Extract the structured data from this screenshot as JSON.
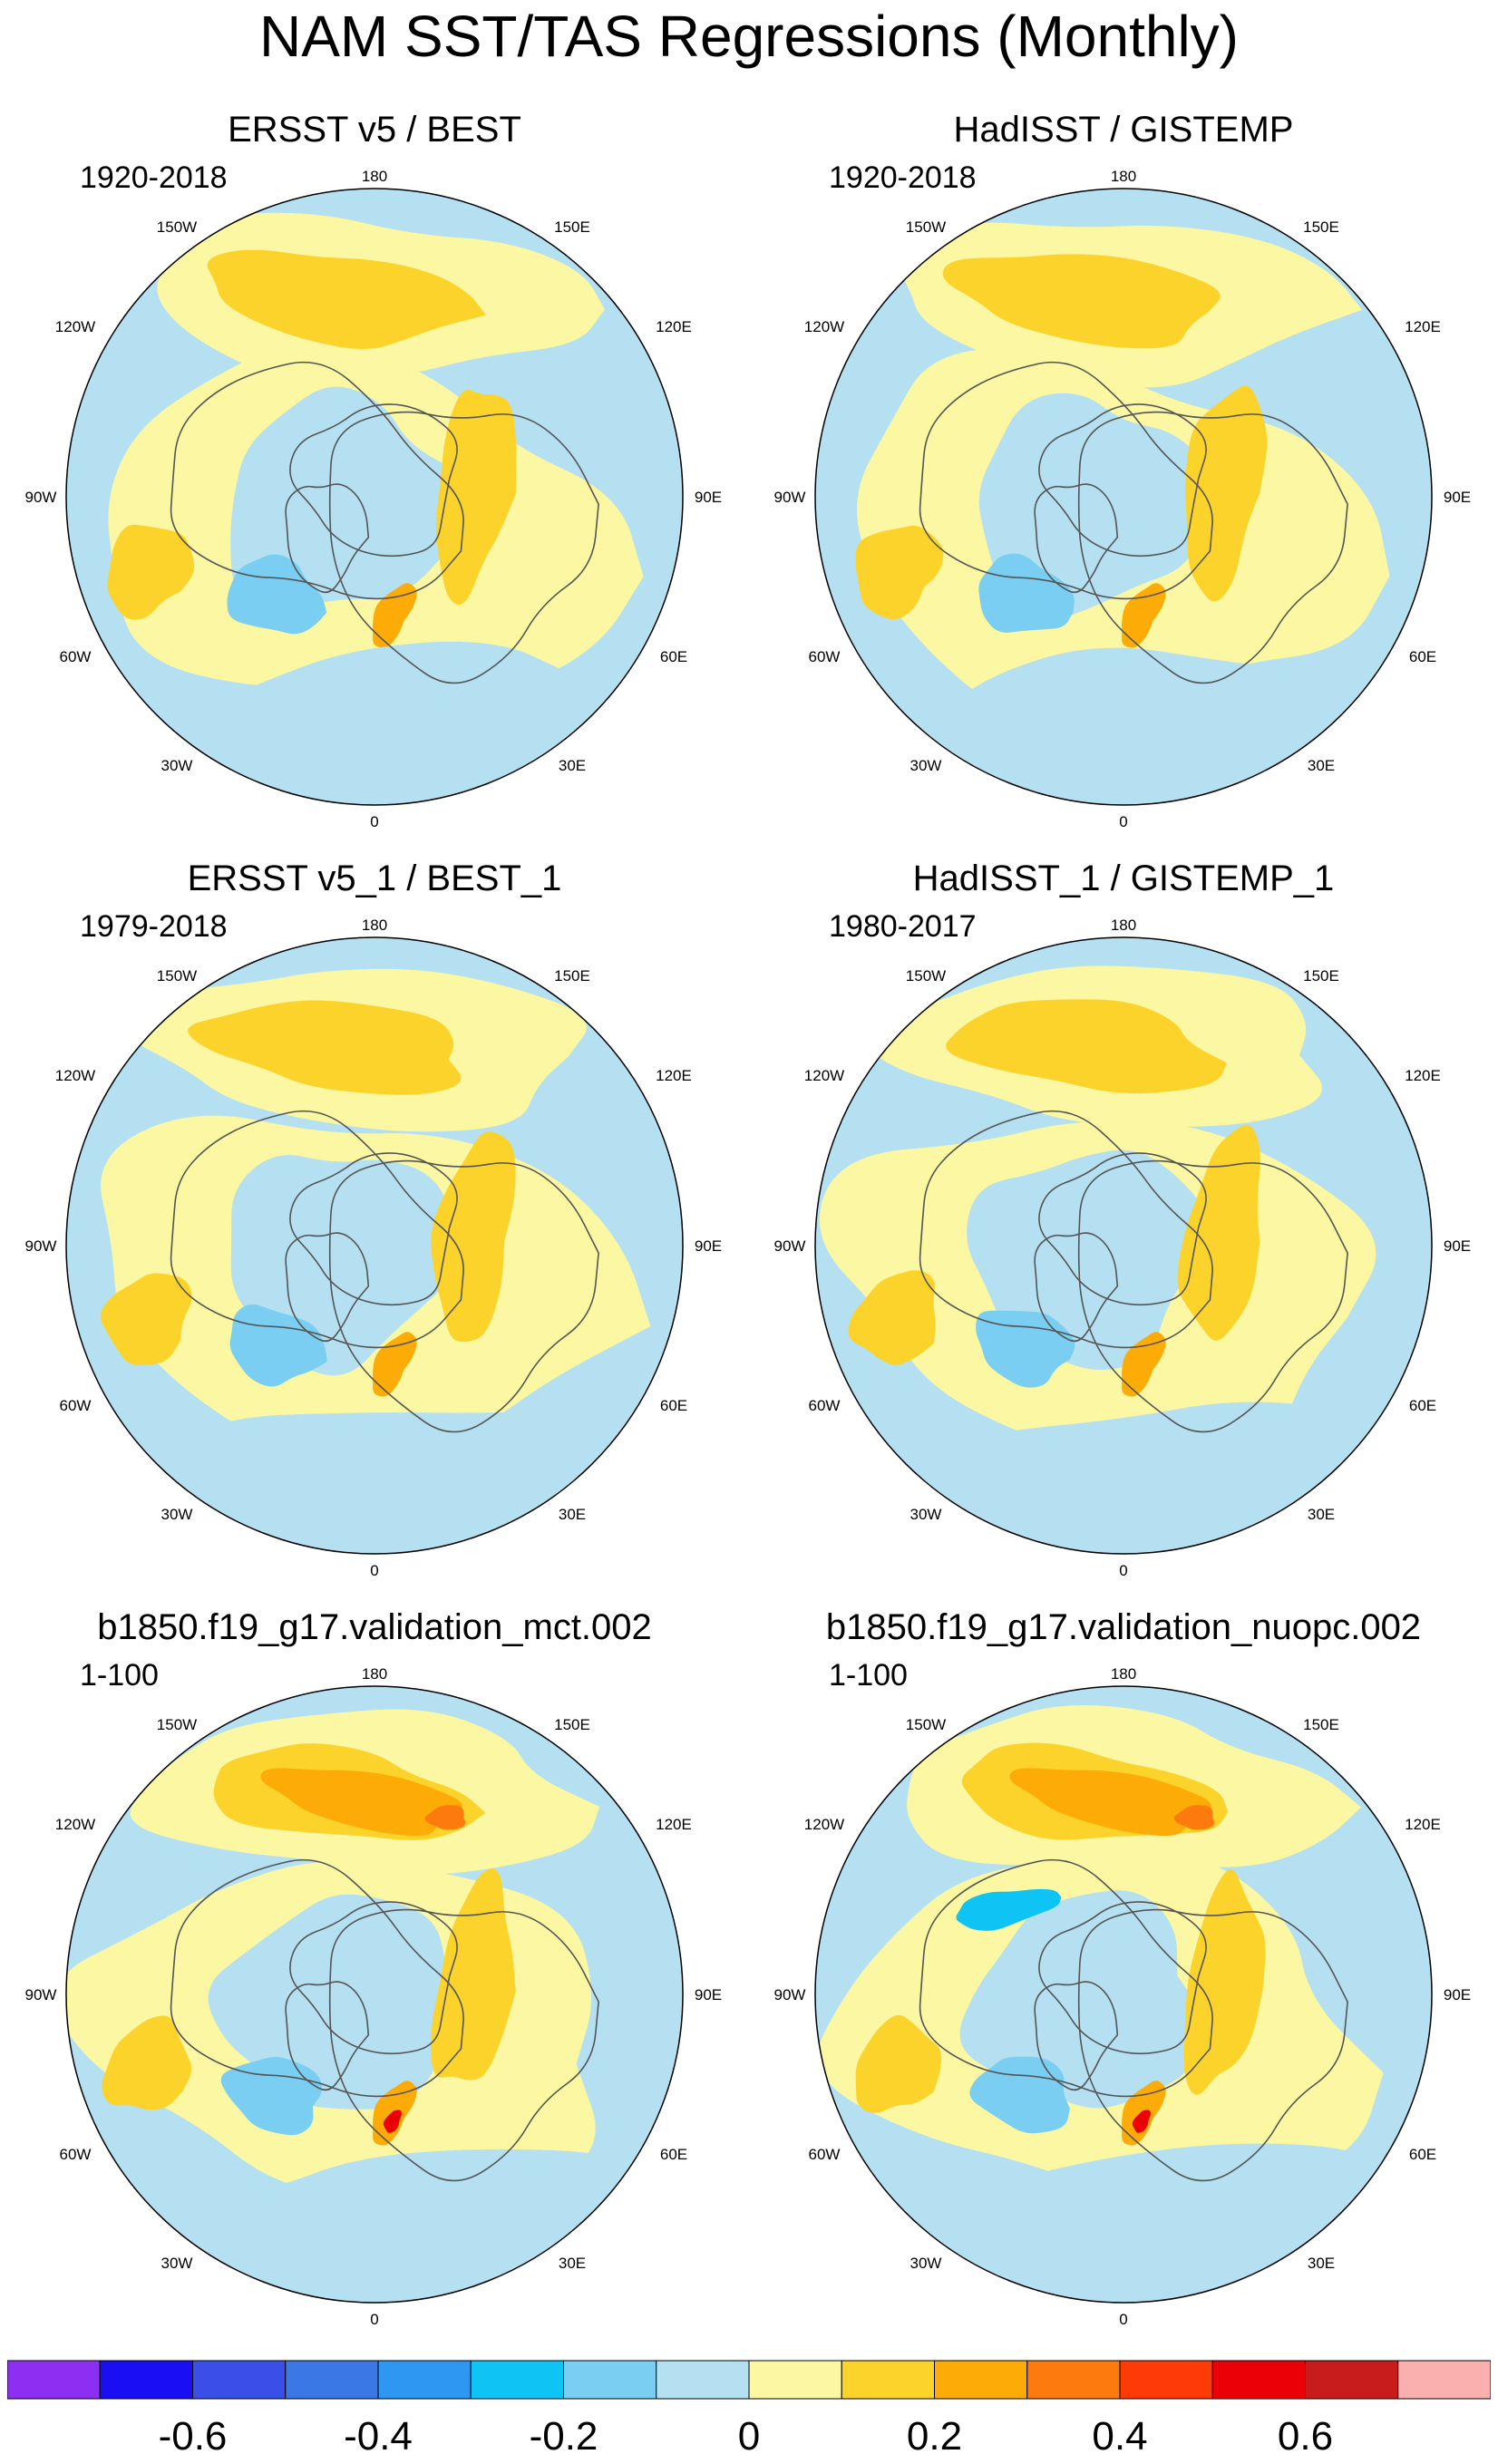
{
  "figure": {
    "title": "NAM SST/TAS Regressions (Monthly)"
  },
  "lon_labels": {
    "n180": "180",
    "w150": "150W",
    "e150": "150E",
    "w120": "120W",
    "e120": "120E",
    "w90": "90W",
    "e90": "90E",
    "w60": "60W",
    "e60": "60E",
    "w30": "30W",
    "e30": "30E",
    "zero": "0"
  },
  "panels": [
    {
      "title": "ERSST v5 / BEST",
      "period": "1920-2018",
      "variant": 0
    },
    {
      "title": "HadISST / GISTEMP",
      "period": "1920-2018",
      "variant": 1
    },
    {
      "title": "ERSST v5_1 / BEST_1",
      "period": "1979-2018",
      "variant": 2
    },
    {
      "title": "HadISST_1 / GISTEMP_1",
      "period": "1980-2017",
      "variant": 3
    },
    {
      "title": "b1850.f19_g17.validation_mct.002",
      "period": "1-100",
      "variant": 4
    },
    {
      "title": "b1850.f19_g17.validation_nuopc.002",
      "period": "1-100",
      "variant": 5
    }
  ],
  "colorbar": {
    "colors": [
      "#8d2ff2",
      "#1a0ff2",
      "#3a4fe8",
      "#3a78e6",
      "#2e97f2",
      "#0ec4f5",
      "#7acef2",
      "#b4e0f2",
      "#fbf7a2",
      "#fcd32b",
      "#fdab06",
      "#fd7a0c",
      "#fe3a06",
      "#ea0006",
      "#c81c1c",
      "#fbb0b0"
    ],
    "tick_labels": [
      "-0.6",
      "-0.4",
      "-0.2",
      "0",
      "0.2",
      "0.4",
      "0.6"
    ]
  },
  "palette": {
    "neutral_neg": "#b4e0f2",
    "neutral_pos": "#fbf7a2",
    "pos_1": "#fcd32b",
    "pos_2": "#fdab06",
    "pos_3": "#fd7a0c",
    "pos_4": "#ea0006",
    "neg_1": "#7acef2",
    "neg_2": "#2e97f2",
    "neg_3": "#0ec4f5",
    "land": "#ffffff",
    "coast": "#555555"
  }
}
